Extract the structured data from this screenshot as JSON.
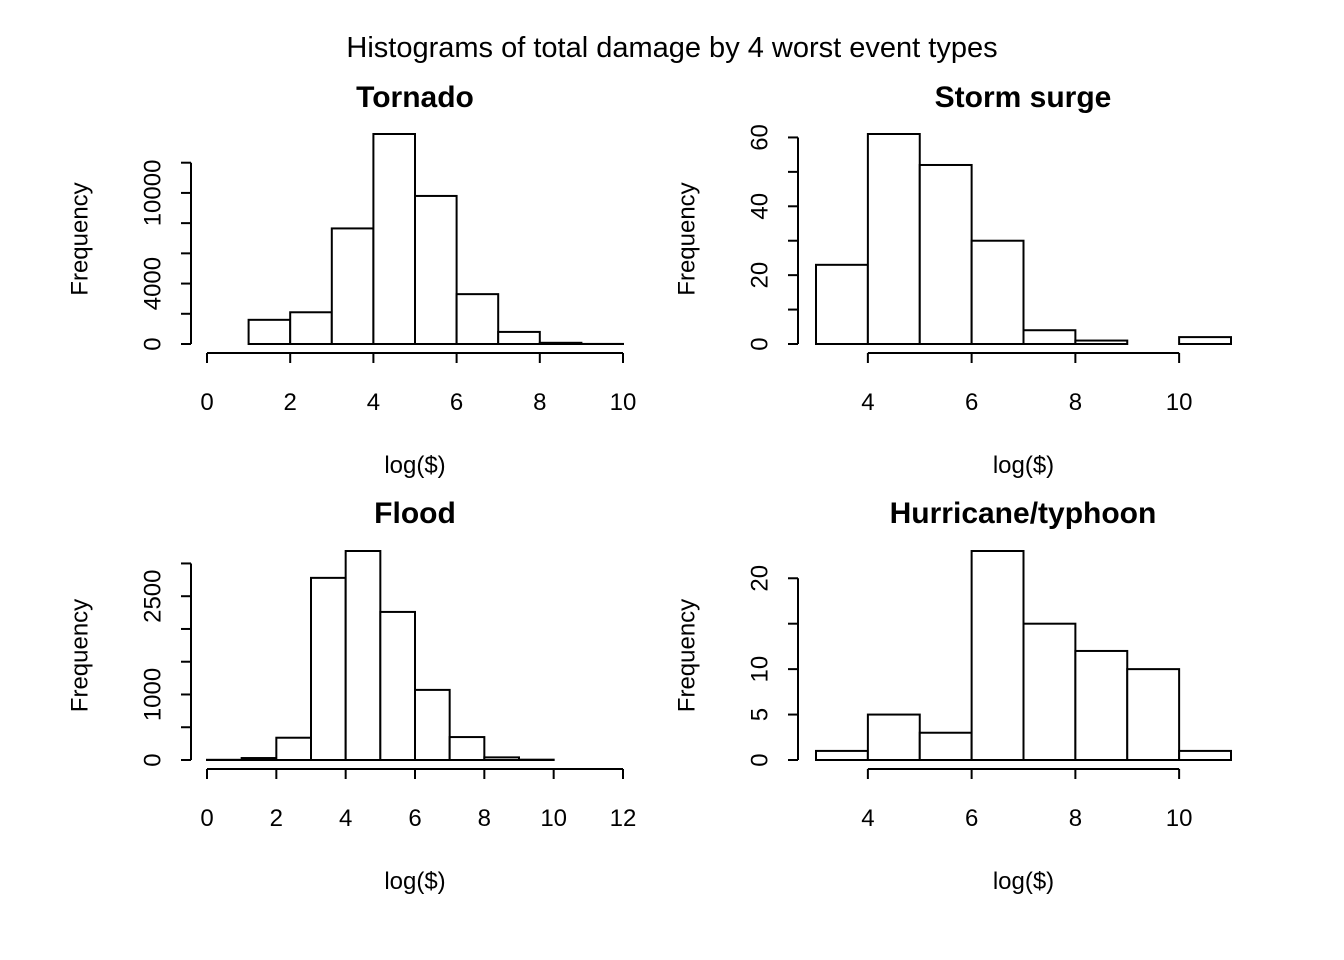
{
  "page": {
    "title": "Histograms of total damage by 4 worst event types"
  },
  "chart_data": [
    {
      "type": "bar",
      "title": "Tornado",
      "xlabel": "log($)",
      "ylabel": "Frequency",
      "bin_edges": [
        0,
        1,
        2,
        3,
        4,
        5,
        6,
        7,
        8,
        9,
        10
      ],
      "values": [
        0,
        1600,
        2100,
        7650,
        13900,
        9800,
        3300,
        800,
        80,
        5
      ],
      "xlim": [
        0,
        10
      ],
      "ylim": [
        0,
        13900
      ],
      "xticks": [
        0,
        2,
        4,
        6,
        8,
        10
      ],
      "yticks": [
        0,
        2000,
        4000,
        6000,
        8000,
        10000,
        12000
      ],
      "ytick_labels": [
        "0",
        "",
        "4000",
        "",
        "",
        "10000",
        ""
      ],
      "grid": false
    },
    {
      "type": "bar",
      "title": "Storm surge",
      "xlabel": "log($)",
      "ylabel": "Frequency",
      "bin_edges": [
        3,
        4,
        5,
        6,
        7,
        8,
        9,
        10,
        11
      ],
      "values": [
        23,
        61,
        52,
        30,
        4,
        1,
        0,
        2
      ],
      "xlim": [
        3,
        11
      ],
      "ylim": [
        0,
        61
      ],
      "xticks": [
        4,
        6,
        8,
        10
      ],
      "yticks": [
        0,
        10,
        20,
        30,
        40,
        50,
        60
      ],
      "ytick_labels": [
        "0",
        "",
        "20",
        "",
        "40",
        "",
        "60"
      ],
      "grid": false
    },
    {
      "type": "bar",
      "title": "Flood",
      "xlabel": "log($)",
      "ylabel": "Frequency",
      "bin_edges": [
        0,
        1,
        2,
        3,
        4,
        5,
        6,
        7,
        8,
        9,
        10,
        11,
        12
      ],
      "values": [
        3,
        30,
        340,
        2780,
        3190,
        2260,
        1070,
        350,
        40,
        5,
        0,
        0
      ],
      "xlim": [
        0,
        12
      ],
      "ylim": [
        0,
        3190
      ],
      "xticks": [
        0,
        2,
        4,
        6,
        8,
        10,
        12
      ],
      "yticks": [
        0,
        500,
        1000,
        1500,
        2000,
        2500,
        3000
      ],
      "ytick_labels": [
        "0",
        "",
        "1000",
        "",
        "",
        "2500",
        ""
      ],
      "grid": false
    },
    {
      "type": "bar",
      "title": "Hurricane/typhoon",
      "xlabel": "log($)",
      "ylabel": "Frequency",
      "bin_edges": [
        3,
        4,
        5,
        6,
        7,
        8,
        9,
        10,
        11
      ],
      "values": [
        1,
        5,
        3,
        23,
        15,
        12,
        10,
        1
      ],
      "xlim": [
        3,
        11
      ],
      "ylim": [
        0,
        23
      ],
      "xticks": [
        4,
        6,
        8,
        10
      ],
      "yticks": [
        0,
        5,
        10,
        15,
        20
      ],
      "ytick_labels": [
        "0",
        "5",
        "10",
        "",
        "20"
      ],
      "grid": false
    }
  ]
}
